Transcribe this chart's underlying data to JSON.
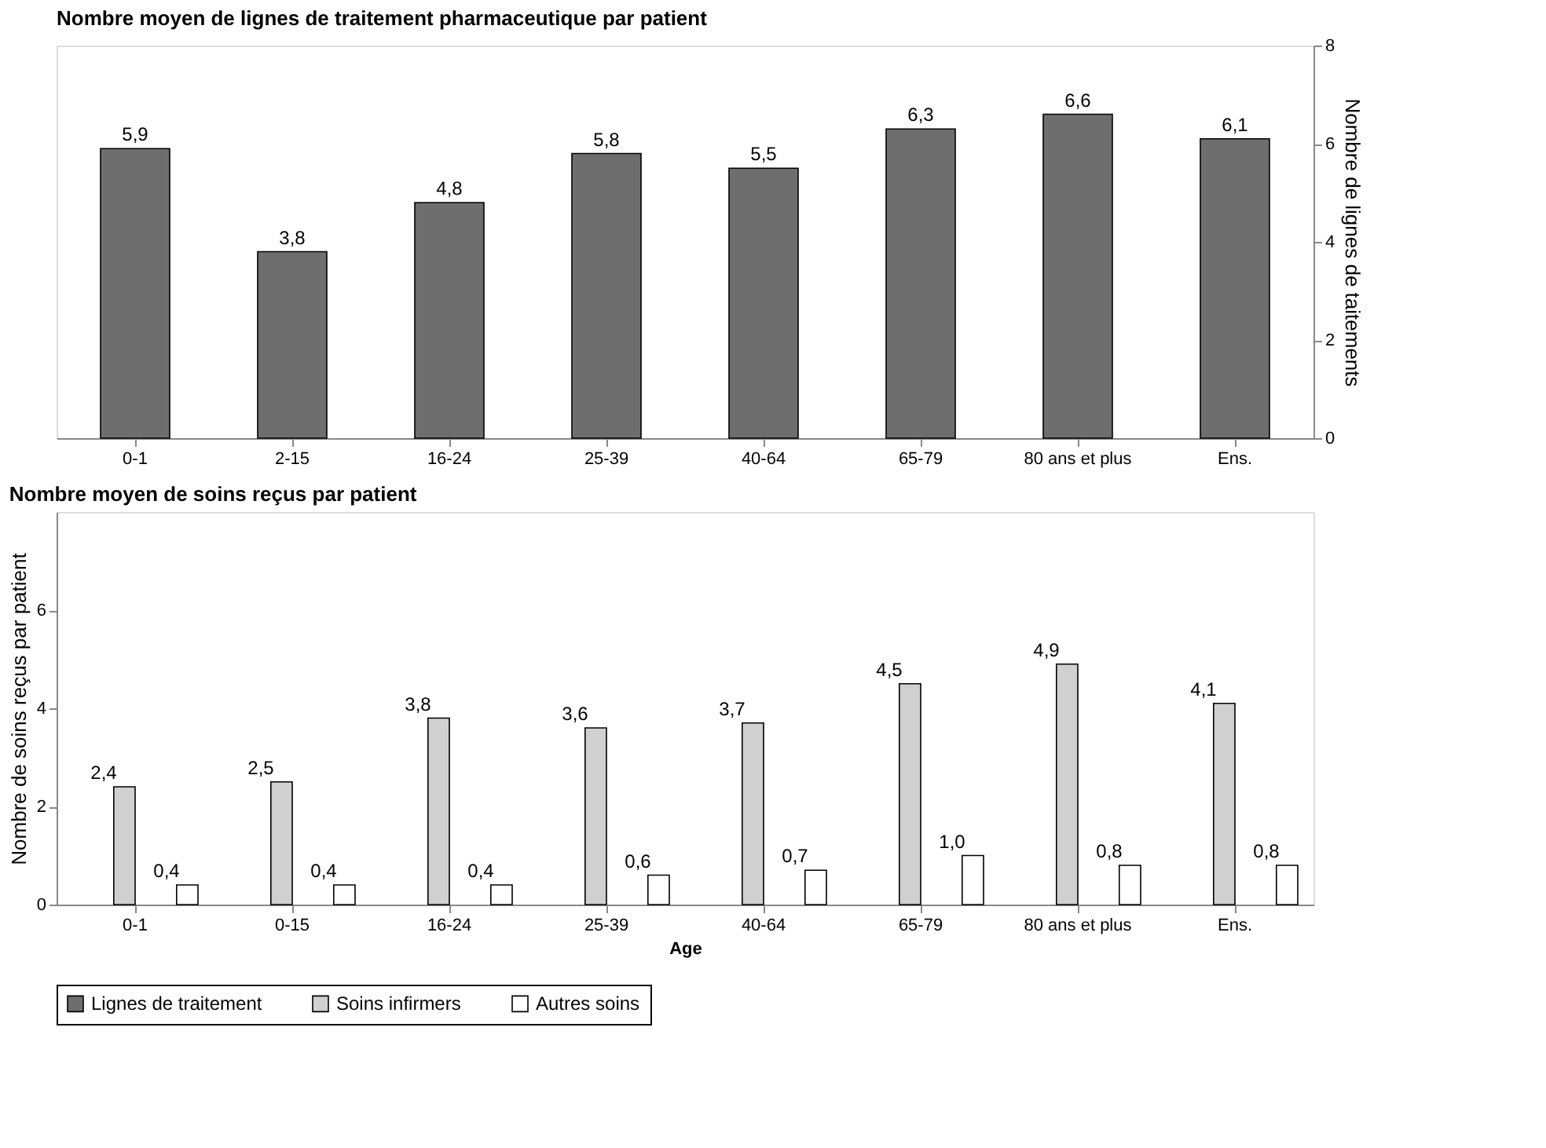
{
  "chart_data": [
    {
      "type": "bar",
      "title": "Nombre moyen de lignes de traitement pharmaceutique par patient",
      "categories": [
        "0-1",
        "2-15",
        "16-24",
        "25-39",
        "40-64",
        "65-79",
        "80 ans et plus",
        "Ens."
      ],
      "series": [
        {
          "name": "Lignes de traitement",
          "color": "#6e6e6e",
          "axis": "y2",
          "values": [
            5.9,
            3.8,
            4.8,
            5.8,
            5.5,
            6.3,
            6.6,
            6.1
          ],
          "value_labels": [
            "5,9",
            "3,8",
            "4,8",
            "5,8",
            "5,5",
            "6,3",
            "6,6",
            "6,1"
          ]
        }
      ],
      "y2label": "Nombre de lignes de taitements",
      "y2lim": [
        0,
        8
      ],
      "y2ticks": [
        0,
        2,
        4,
        6,
        8
      ]
    },
    {
      "type": "bar",
      "title": "Nombre moyen de soins reçus par patient",
      "categories": [
        "0-1",
        "0-15",
        "16-24",
        "25-39",
        "40-64",
        "65-79",
        "80 ans et plus",
        "Ens."
      ],
      "series": [
        {
          "name": "Soins infirmers",
          "color": "#d0d0d0",
          "values": [
            2.4,
            2.5,
            3.8,
            3.6,
            3.7,
            4.5,
            4.9,
            4.1
          ],
          "value_labels": [
            "2,4",
            "2,5",
            "3,8",
            "3,6",
            "3,7",
            "4,5",
            "4,9",
            "4,1"
          ]
        },
        {
          "name": "Autres soins",
          "color": "#ffffff",
          "values": [
            0.4,
            0.4,
            0.4,
            0.6,
            0.7,
            1.0,
            0.8,
            0.8
          ],
          "value_labels": [
            "0,4",
            "0,4",
            "0,4",
            "0,6",
            "0,7",
            "1,0",
            "0,8",
            "0,8"
          ]
        }
      ],
      "xlabel": "Age",
      "ylabel": "Nombre de soins reçus par patient",
      "ylim": [
        0,
        8
      ],
      "yticks": [
        0,
        2,
        4,
        6
      ],
      "legend": "bottom"
    }
  ]
}
